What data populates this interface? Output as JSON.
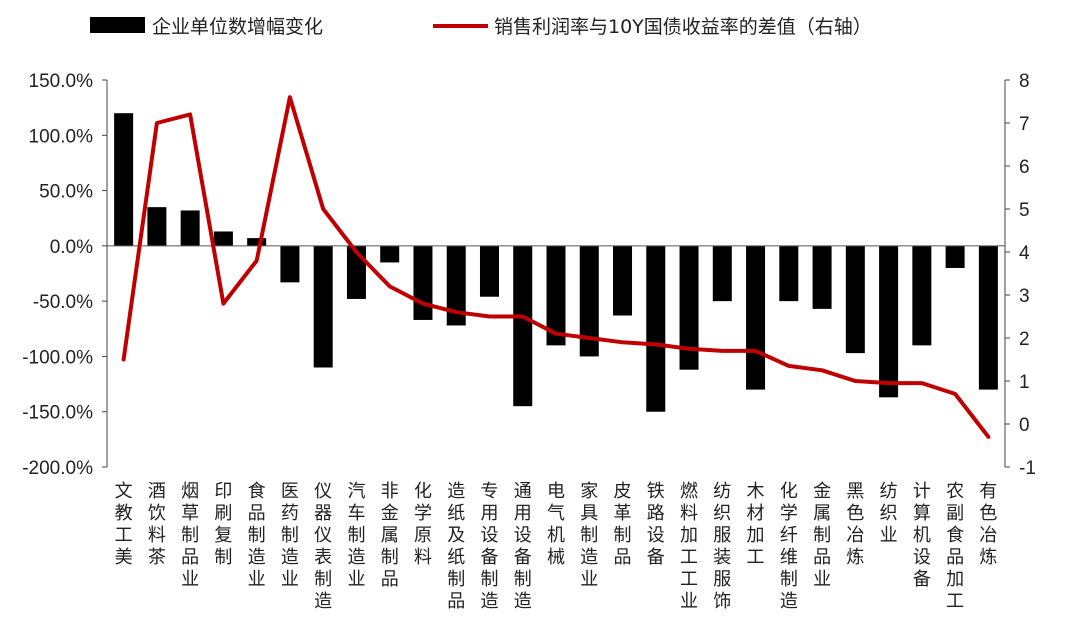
{
  "chart_data": {
    "type": "bar+line",
    "categories": [
      "文教工美",
      "酒饮料茶",
      "烟草制品业",
      "印刷复制",
      "食品制造业",
      "医药制造业",
      "仪器仪表制造",
      "汽车制造业",
      "非金属制品",
      "化学原料",
      "造纸及纸制品",
      "专用设备制造",
      "通用设备制造",
      "电气机械",
      "家具制造业",
      "皮革制品",
      "铁路设备",
      "燃料加工工业",
      "纺织服装服饰",
      "木材加工",
      "化学纤维制造",
      "金属制品业",
      "黑色冶炼",
      "纺织业",
      "计算机设备",
      "农副食品加工",
      "有色冶炼"
    ],
    "series": [
      {
        "name": "企业单位数增幅变化",
        "type": "bar",
        "axis": "left",
        "color": "#000000",
        "values": [
          120,
          35,
          32,
          13,
          7,
          -33,
          -110,
          -48,
          -15,
          -67,
          -72,
          -46,
          -145,
          -90,
          -100,
          -63,
          -150,
          -112,
          -50,
          -130,
          -50,
          -57,
          -97,
          -137,
          -90,
          -20,
          -130
        ]
      },
      {
        "name": "销售利润率与10Y国债收益率的差值（右轴）",
        "type": "line",
        "axis": "right",
        "color": "#c00000",
        "values": [
          1.5,
          7.0,
          7.2,
          2.8,
          3.8,
          7.6,
          5.0,
          4.0,
          3.2,
          2.8,
          2.6,
          2.5,
          2.5,
          2.1,
          2.0,
          1.9,
          1.85,
          1.75,
          1.7,
          1.7,
          1.35,
          1.25,
          1.0,
          0.95,
          0.95,
          0.7,
          -0.3
        ]
      }
    ],
    "y_left": {
      "min": -200,
      "max": 150,
      "ticks": [
        "150.0%",
        "100.0%",
        "50.0%",
        "0.0%",
        "-50.0%",
        "-100.0%",
        "-150.0%",
        "-200.0%"
      ],
      "tick_values": [
        150,
        100,
        50,
        0,
        -50,
        -100,
        -150,
        -200
      ]
    },
    "y_right": {
      "min": -1,
      "max": 8,
      "ticks": [
        "8",
        "7",
        "6",
        "5",
        "4",
        "3",
        "2",
        "1",
        "0",
        "-1"
      ],
      "tick_values": [
        8,
        7,
        6,
        5,
        4,
        3,
        2,
        1,
        0,
        -1
      ]
    },
    "grid": false,
    "legend_position": "top"
  }
}
